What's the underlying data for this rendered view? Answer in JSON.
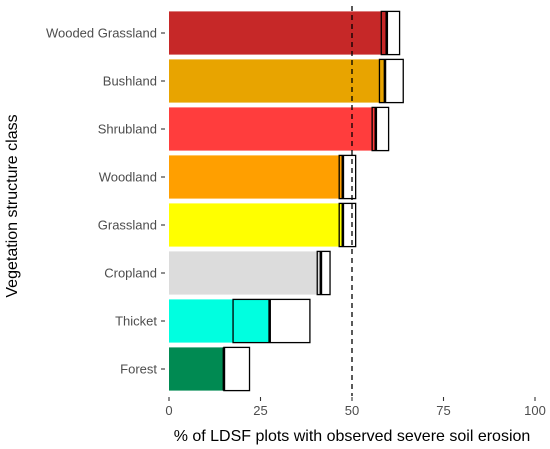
{
  "chart_data": {
    "type": "bar",
    "orientation": "horizontal",
    "xlabel": "% of LDSF plots with observed severe soil erosion",
    "ylabel": "Vegetation structure class",
    "xlim": [
      0,
      100
    ],
    "xticks": [
      0,
      25,
      50,
      75,
      100
    ],
    "reference_line": {
      "value": 50,
      "style": "dashed"
    },
    "grid": false,
    "legend": "none",
    "categories": [
      "Wooded Grassland",
      "Bushland",
      "Shrubland",
      "Woodland",
      "Grassland",
      "Cropland",
      "Thicket",
      "Forest"
    ],
    "values": [
      59.5,
      59,
      56.5,
      47.5,
      47.5,
      41.5,
      27.5,
      15
    ],
    "interval": [
      [
        58,
        63
      ],
      [
        57.5,
        64
      ],
      [
        55.5,
        60
      ],
      [
        46.5,
        51
      ],
      [
        46.5,
        51
      ],
      [
        40.5,
        44
      ],
      [
        17.5,
        38.5
      ],
      [
        15,
        22
      ]
    ],
    "colors": [
      "#c62828",
      "#e8a400",
      "#ff3d3d",
      "#ff9f00",
      "#ffff00",
      "#dcdcdc",
      "#00ffe0",
      "#008a52"
    ]
  }
}
